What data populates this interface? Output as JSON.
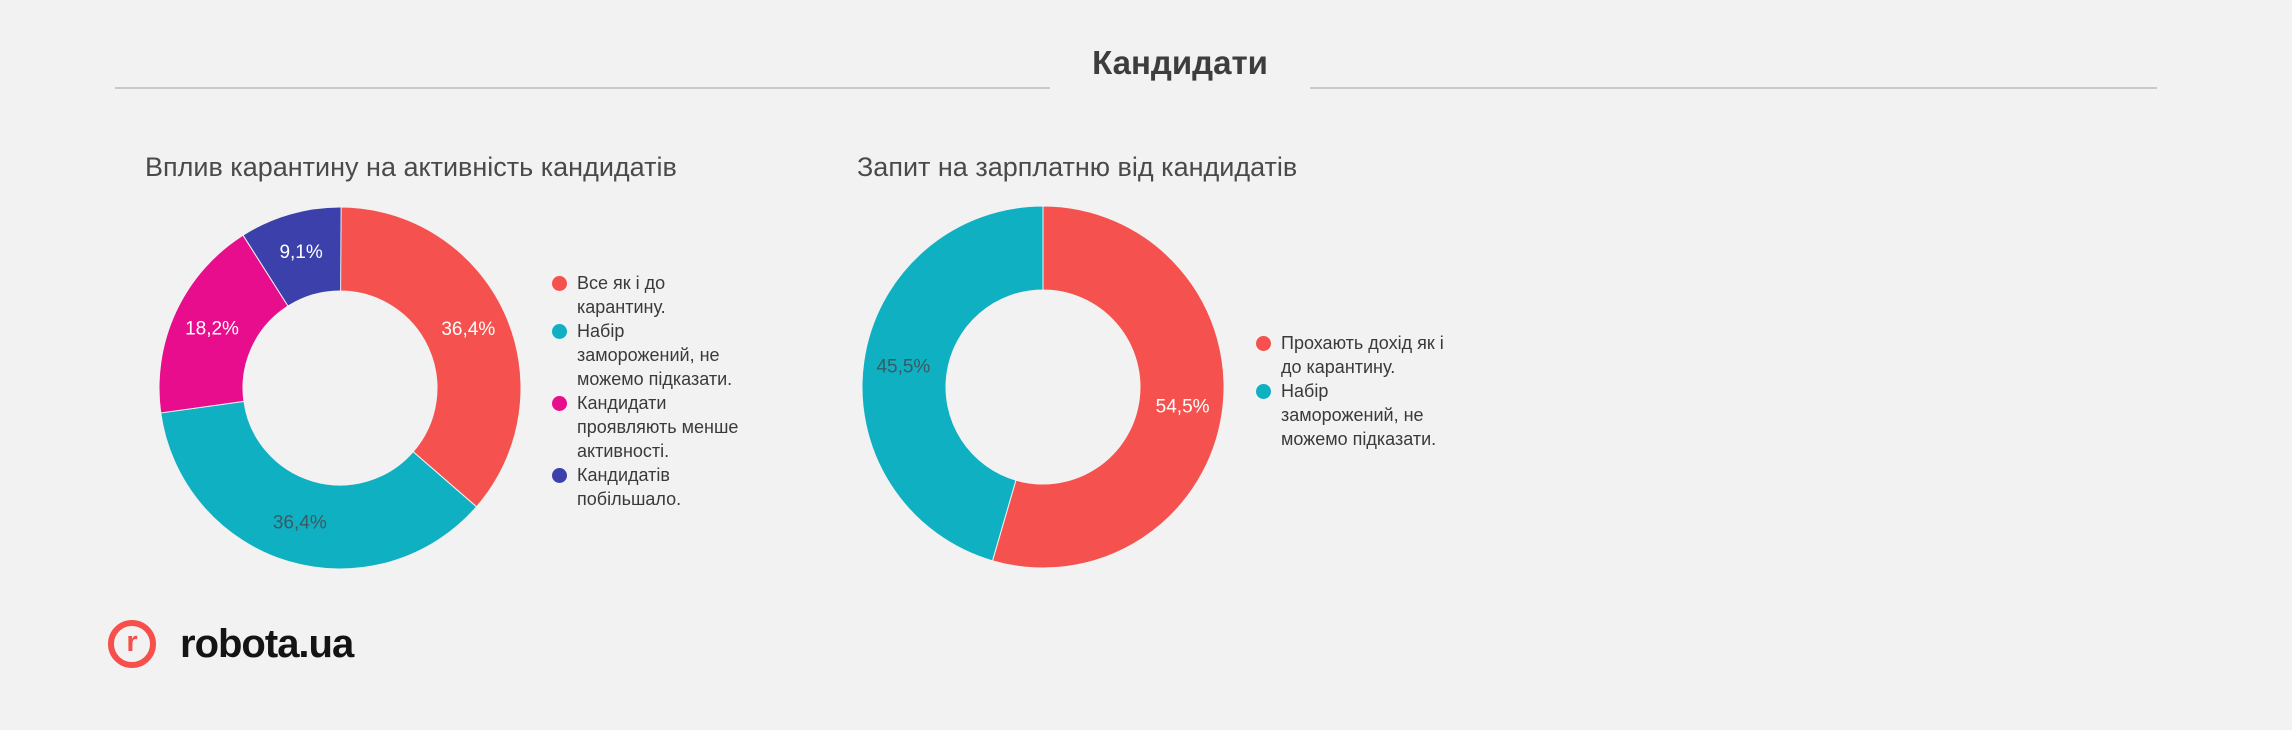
{
  "page": {
    "background": "#F2F2F2"
  },
  "header": {
    "title": "Кандидати",
    "divider_color": "#C9C9C9"
  },
  "chart_data": [
    {
      "type": "pie",
      "donut": true,
      "title": "Вплив карантину на активність кандидатів",
      "labels": [
        "Все як і до\nкарантину.",
        "Набір\nзаморожений, не\nможемо підказати.",
        "Кандидати\nпроявляють менше\nактивності.",
        "Кандидатів\nпобільшало."
      ],
      "values": [
        36.4,
        36.4,
        18.2,
        9.1
      ],
      "value_labels": [
        "36,4%",
        "36,4%",
        "18,2%",
        "9,1%"
      ],
      "colors": [
        "#F5514E",
        "#0FB0C1",
        "#E70D8D",
        "#3B40AA"
      ],
      "value_label_colors": [
        "#FFFFFF",
        "#3C5A64",
        "#FFFFFF",
        "#FFFFFF"
      ],
      "legend_position": "right",
      "start_angle_deg": 0,
      "direction": "clockwise"
    },
    {
      "type": "pie",
      "donut": true,
      "title": "Запит на зарплатню від кандидатів",
      "labels": [
        "Прохають дохід як і\nдо карантину.",
        "Набір\nзаморожений, не\nможемо підказати."
      ],
      "values": [
        54.5,
        45.5
      ],
      "value_labels": [
        "54,5%",
        "45,5%"
      ],
      "colors": [
        "#F5514E",
        "#0FB0C1"
      ],
      "value_label_colors": [
        "#FFFFFF",
        "#3C5A64"
      ],
      "legend_position": "right",
      "start_angle_deg": 0,
      "direction": "clockwise"
    }
  ],
  "footer": {
    "logo_mark": "r",
    "logo_text": "robota.ua",
    "logo_color": "#F5504C"
  }
}
